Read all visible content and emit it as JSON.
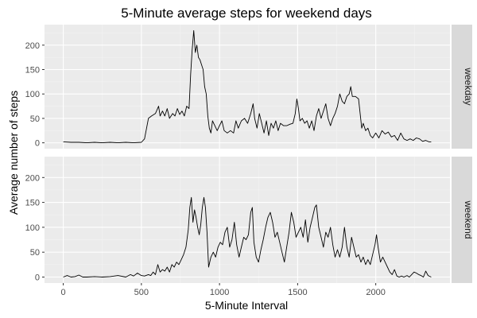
{
  "chart_data": {
    "type": "line",
    "title": "5-Minute average steps for weekend days",
    "xlabel": "5-Minute Interval",
    "ylabel": "Average number of steps",
    "xlim": [
      -120,
      2475
    ],
    "ylim": [
      -12,
      242
    ],
    "x_ticks": [
      0,
      500,
      1000,
      1500,
      2000
    ],
    "y_ticks": [
      0,
      50,
      100,
      150,
      200
    ],
    "grid": true,
    "line_color": "#000000",
    "panel_background": "#ebebeb",
    "strip_background": "#d9d9d9",
    "facets": [
      {
        "label": "weekday",
        "points": [
          [
            0,
            2
          ],
          [
            50,
            1
          ],
          [
            100,
            1
          ],
          [
            150,
            0
          ],
          [
            200,
            1
          ],
          [
            250,
            0
          ],
          [
            300,
            1
          ],
          [
            350,
            0
          ],
          [
            400,
            1
          ],
          [
            450,
            0
          ],
          [
            500,
            1
          ],
          [
            520,
            8
          ],
          [
            545,
            50
          ],
          [
            565,
            55
          ],
          [
            590,
            60
          ],
          [
            610,
            75
          ],
          [
            620,
            55
          ],
          [
            635,
            65
          ],
          [
            650,
            55
          ],
          [
            665,
            70
          ],
          [
            680,
            50
          ],
          [
            700,
            60
          ],
          [
            715,
            55
          ],
          [
            730,
            70
          ],
          [
            745,
            58
          ],
          [
            760,
            65
          ],
          [
            775,
            55
          ],
          [
            790,
            75
          ],
          [
            805,
            70
          ],
          [
            815,
            140
          ],
          [
            825,
            190
          ],
          [
            835,
            230
          ],
          [
            845,
            185
          ],
          [
            855,
            200
          ],
          [
            865,
            175
          ],
          [
            875,
            170
          ],
          [
            885,
            160
          ],
          [
            895,
            150
          ],
          [
            905,
            115
          ],
          [
            915,
            100
          ],
          [
            925,
            55
          ],
          [
            935,
            30
          ],
          [
            945,
            20
          ],
          [
            955,
            45
          ],
          [
            970,
            35
          ],
          [
            985,
            25
          ],
          [
            1000,
            35
          ],
          [
            1015,
            45
          ],
          [
            1030,
            25
          ],
          [
            1050,
            20
          ],
          [
            1070,
            25
          ],
          [
            1090,
            20
          ],
          [
            1105,
            45
          ],
          [
            1120,
            30
          ],
          [
            1140,
            45
          ],
          [
            1160,
            50
          ],
          [
            1180,
            40
          ],
          [
            1200,
            60
          ],
          [
            1215,
            80
          ],
          [
            1225,
            50
          ],
          [
            1240,
            30
          ],
          [
            1255,
            60
          ],
          [
            1270,
            40
          ],
          [
            1285,
            20
          ],
          [
            1300,
            45
          ],
          [
            1315,
            15
          ],
          [
            1330,
            40
          ],
          [
            1345,
            30
          ],
          [
            1360,
            45
          ],
          [
            1375,
            25
          ],
          [
            1390,
            40
          ],
          [
            1410,
            35
          ],
          [
            1430,
            35
          ],
          [
            1450,
            38
          ],
          [
            1470,
            40
          ],
          [
            1485,
            60
          ],
          [
            1495,
            90
          ],
          [
            1505,
            70
          ],
          [
            1515,
            45
          ],
          [
            1530,
            50
          ],
          [
            1545,
            40
          ],
          [
            1560,
            45
          ],
          [
            1575,
            30
          ],
          [
            1590,
            45
          ],
          [
            1605,
            25
          ],
          [
            1620,
            55
          ],
          [
            1635,
            70
          ],
          [
            1650,
            50
          ],
          [
            1665,
            65
          ],
          [
            1680,
            80
          ],
          [
            1695,
            50
          ],
          [
            1710,
            35
          ],
          [
            1725,
            50
          ],
          [
            1740,
            60
          ],
          [
            1755,
            75
          ],
          [
            1770,
            100
          ],
          [
            1785,
            85
          ],
          [
            1800,
            80
          ],
          [
            1815,
            95
          ],
          [
            1830,
            100
          ],
          [
            1840,
            115
          ],
          [
            1850,
            95
          ],
          [
            1870,
            95
          ],
          [
            1890,
            90
          ],
          [
            1900,
            60
          ],
          [
            1910,
            30
          ],
          [
            1920,
            40
          ],
          [
            1935,
            25
          ],
          [
            1950,
            30
          ],
          [
            1965,
            15
          ],
          [
            1980,
            10
          ],
          [
            2000,
            20
          ],
          [
            2020,
            10
          ],
          [
            2040,
            25
          ],
          [
            2060,
            18
          ],
          [
            2080,
            22
          ],
          [
            2100,
            12
          ],
          [
            2120,
            15
          ],
          [
            2140,
            5
          ],
          [
            2160,
            20
          ],
          [
            2180,
            8
          ],
          [
            2200,
            5
          ],
          [
            2220,
            8
          ],
          [
            2240,
            5
          ],
          [
            2260,
            10
          ],
          [
            2280,
            8
          ],
          [
            2300,
            3
          ],
          [
            2320,
            5
          ],
          [
            2340,
            2
          ],
          [
            2355,
            2
          ]
        ]
      },
      {
        "label": "weekend",
        "points": [
          [
            0,
            0
          ],
          [
            25,
            3
          ],
          [
            50,
            0
          ],
          [
            75,
            1
          ],
          [
            100,
            4
          ],
          [
            125,
            0
          ],
          [
            150,
            0
          ],
          [
            200,
            1
          ],
          [
            250,
            0
          ],
          [
            300,
            1
          ],
          [
            350,
            3
          ],
          [
            400,
            0
          ],
          [
            430,
            5
          ],
          [
            450,
            2
          ],
          [
            475,
            8
          ],
          [
            500,
            3
          ],
          [
            520,
            2
          ],
          [
            545,
            5
          ],
          [
            560,
            3
          ],
          [
            575,
            10
          ],
          [
            590,
            5
          ],
          [
            605,
            25
          ],
          [
            620,
            10
          ],
          [
            635,
            15
          ],
          [
            650,
            12
          ],
          [
            665,
            20
          ],
          [
            680,
            10
          ],
          [
            695,
            25
          ],
          [
            710,
            20
          ],
          [
            725,
            30
          ],
          [
            740,
            25
          ],
          [
            755,
            35
          ],
          [
            770,
            45
          ],
          [
            785,
            60
          ],
          [
            800,
            95
          ],
          [
            810,
            140
          ],
          [
            820,
            160
          ],
          [
            830,
            110
          ],
          [
            840,
            135
          ],
          [
            850,
            120
          ],
          [
            860,
            100
          ],
          [
            870,
            85
          ],
          [
            880,
            105
          ],
          [
            890,
            140
          ],
          [
            900,
            160
          ],
          [
            910,
            140
          ],
          [
            920,
            90
          ],
          [
            930,
            20
          ],
          [
            945,
            40
          ],
          [
            960,
            50
          ],
          [
            975,
            40
          ],
          [
            990,
            60
          ],
          [
            1005,
            70
          ],
          [
            1020,
            65
          ],
          [
            1035,
            90
          ],
          [
            1050,
            100
          ],
          [
            1065,
            60
          ],
          [
            1080,
            75
          ],
          [
            1095,
            110
          ],
          [
            1110,
            65
          ],
          [
            1125,
            40
          ],
          [
            1140,
            60
          ],
          [
            1155,
            80
          ],
          [
            1170,
            75
          ],
          [
            1185,
            85
          ],
          [
            1200,
            130
          ],
          [
            1210,
            140
          ],
          [
            1220,
            70
          ],
          [
            1235,
            40
          ],
          [
            1250,
            30
          ],
          [
            1265,
            55
          ],
          [
            1280,
            75
          ],
          [
            1295,
            100
          ],
          [
            1310,
            120
          ],
          [
            1325,
            130
          ],
          [
            1340,
            110
          ],
          [
            1355,
            80
          ],
          [
            1370,
            90
          ],
          [
            1385,
            70
          ],
          [
            1400,
            50
          ],
          [
            1415,
            30
          ],
          [
            1430,
            60
          ],
          [
            1445,
            90
          ],
          [
            1460,
            130
          ],
          [
            1475,
            110
          ],
          [
            1490,
            80
          ],
          [
            1505,
            90
          ],
          [
            1520,
            100
          ],
          [
            1535,
            80
          ],
          [
            1550,
            115
          ],
          [
            1565,
            70
          ],
          [
            1580,
            100
          ],
          [
            1595,
            120
          ],
          [
            1610,
            140
          ],
          [
            1620,
            145
          ],
          [
            1635,
            100
          ],
          [
            1650,
            80
          ],
          [
            1665,
            60
          ],
          [
            1680,
            90
          ],
          [
            1695,
            80
          ],
          [
            1710,
            100
          ],
          [
            1725,
            65
          ],
          [
            1740,
            40
          ],
          [
            1755,
            55
          ],
          [
            1770,
            40
          ],
          [
            1785,
            60
          ],
          [
            1800,
            100
          ],
          [
            1815,
            60
          ],
          [
            1830,
            40
          ],
          [
            1845,
            80
          ],
          [
            1860,
            60
          ],
          [
            1875,
            40
          ],
          [
            1890,
            45
          ],
          [
            1905,
            30
          ],
          [
            1920,
            40
          ],
          [
            1935,
            25
          ],
          [
            1950,
            35
          ],
          [
            1965,
            25
          ],
          [
            1980,
            45
          ],
          [
            1995,
            65
          ],
          [
            2005,
            85
          ],
          [
            2015,
            60
          ],
          [
            2030,
            30
          ],
          [
            2045,
            40
          ],
          [
            2060,
            30
          ],
          [
            2075,
            20
          ],
          [
            2090,
            10
          ],
          [
            2105,
            5
          ],
          [
            2120,
            15
          ],
          [
            2135,
            2
          ],
          [
            2150,
            0
          ],
          [
            2165,
            2
          ],
          [
            2180,
            0
          ],
          [
            2200,
            3
          ],
          [
            2215,
            0
          ],
          [
            2230,
            5
          ],
          [
            2245,
            10
          ],
          [
            2260,
            8
          ],
          [
            2275,
            5
          ],
          [
            2290,
            3
          ],
          [
            2305,
            0
          ],
          [
            2320,
            12
          ],
          [
            2335,
            3
          ],
          [
            2355,
            0
          ]
        ]
      }
    ]
  }
}
